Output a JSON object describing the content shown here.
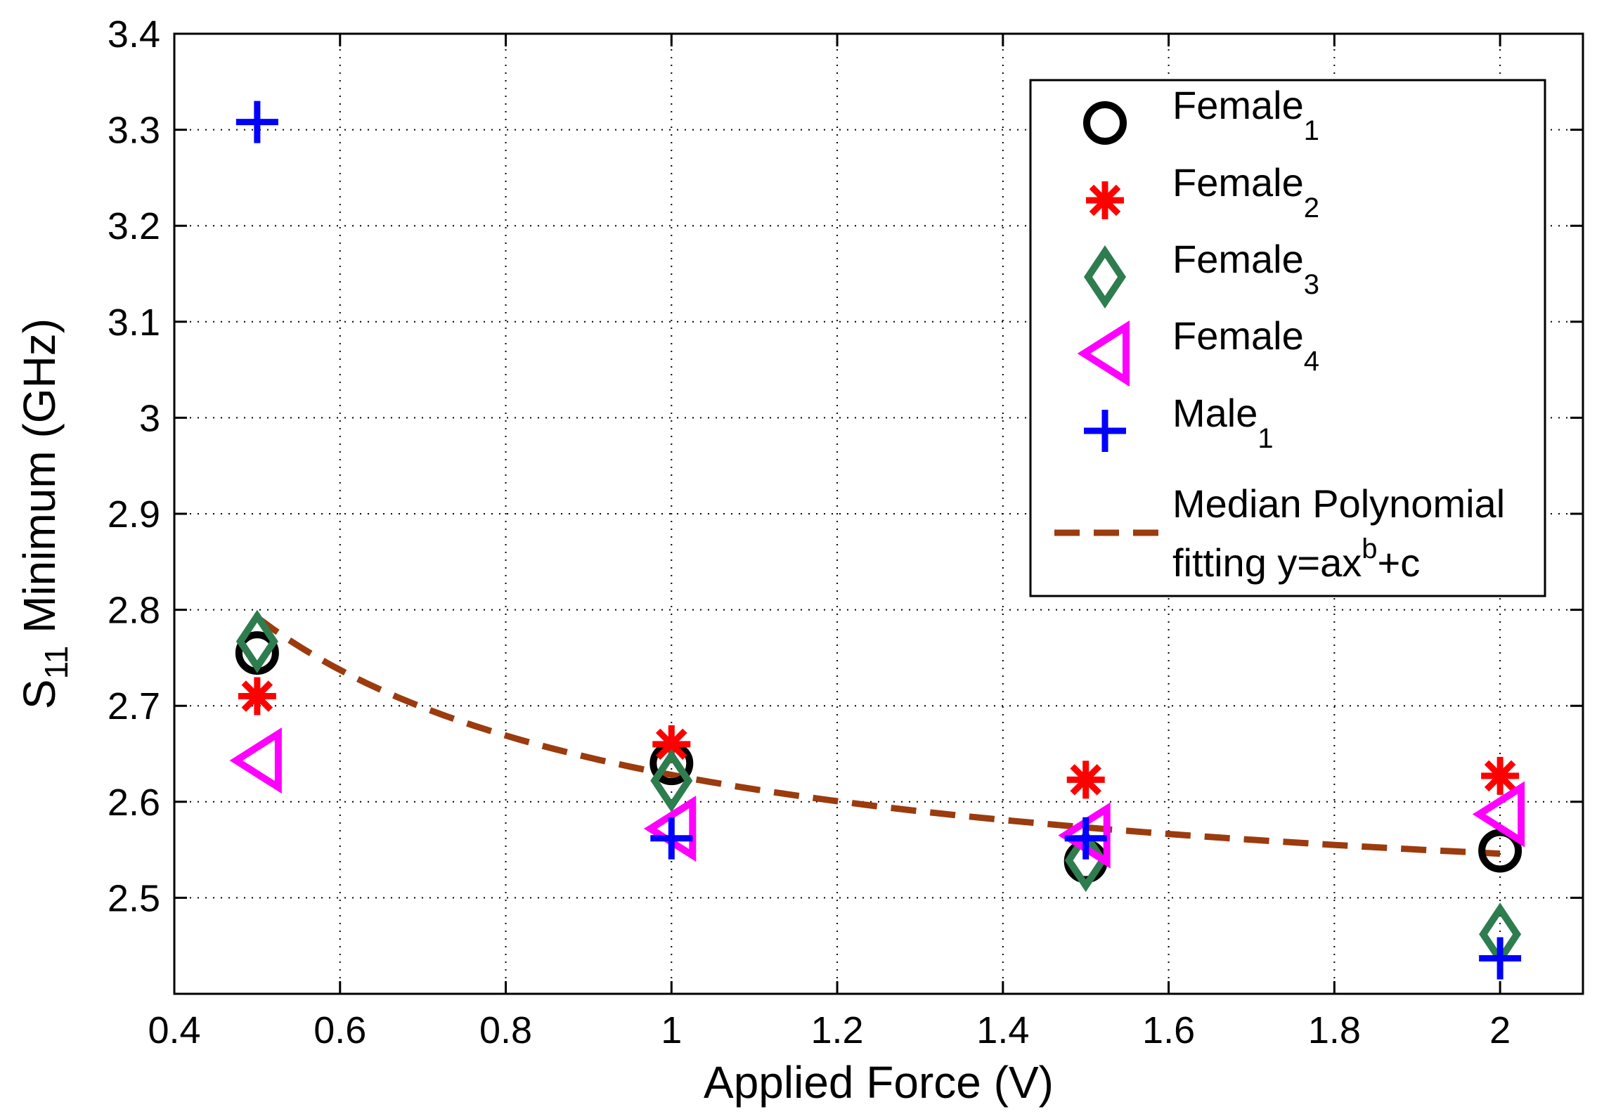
{
  "chart_data": {
    "type": "scatter",
    "title": "",
    "xlabel": "Applied Force (V)",
    "ylabel": {
      "prefix": "S",
      "subscript": "11",
      "suffix": " Minimum (GHz)"
    },
    "xlim": [
      0.4,
      2.1
    ],
    "ylim": [
      2.4,
      3.4
    ],
    "xticks": [
      0.4,
      0.6,
      0.8,
      1.0,
      1.2,
      1.4,
      1.6,
      1.8,
      2.0
    ],
    "xtick_labels": [
      "0.4",
      "0.6",
      "0.8",
      "1",
      "1.2",
      "1.4",
      "1.6",
      "1.8",
      "2"
    ],
    "yticks": [
      2.5,
      2.6,
      2.7,
      2.8,
      2.9,
      3.0,
      3.1,
      3.2,
      3.3,
      3.4
    ],
    "ytick_labels": [
      "2.5",
      "2.6",
      "2.7",
      "2.8",
      "2.9",
      "3",
      "3.1",
      "3.2",
      "3.3",
      "3.4"
    ],
    "grid": true,
    "legend_position": "top-right",
    "series": [
      {
        "name": "Female",
        "subscript": "1",
        "marker": "circle",
        "color": "#000000",
        "x": [
          0.5,
          1.0,
          1.5,
          2.0
        ],
        "y": [
          2.755,
          2.64,
          2.538,
          2.549
        ]
      },
      {
        "name": "Female",
        "subscript": "2",
        "marker": "asterisk",
        "color": "#ff0000",
        "x": [
          0.5,
          1.0,
          1.5,
          2.0
        ],
        "y": [
          2.71,
          2.66,
          2.623,
          2.627
        ]
      },
      {
        "name": "Female",
        "subscript": "3",
        "marker": "diamond",
        "color": "#2e7d4f",
        "x": [
          0.5,
          1.0,
          1.5,
          2.0
        ],
        "y": [
          2.767,
          2.622,
          2.539,
          2.462
        ]
      },
      {
        "name": "Female",
        "subscript": "4",
        "marker": "triangle-left",
        "color": "#ff00ff",
        "x": [
          0.5,
          1.0,
          1.5,
          2.0
        ],
        "y": [
          2.643,
          2.572,
          2.565,
          2.587
        ]
      },
      {
        "name": "Male",
        "subscript": "1",
        "marker": "plus",
        "color": "#0000ff",
        "x": [
          0.5,
          1.0,
          1.5,
          2.0
        ],
        "y": [
          3.308,
          2.562,
          2.562,
          2.437
        ]
      }
    ],
    "fit": {
      "label_line1": "Median Polynomial",
      "label_line2_prefix": "fitting y=ax",
      "label_line2_sup": "b",
      "label_line2_suffix": "+c",
      "color": "#9b3b0e",
      "style": "dashed",
      "a": 0.164,
      "b": -1.0,
      "c": 2.464,
      "x_range": [
        0.5,
        2.0
      ]
    }
  }
}
